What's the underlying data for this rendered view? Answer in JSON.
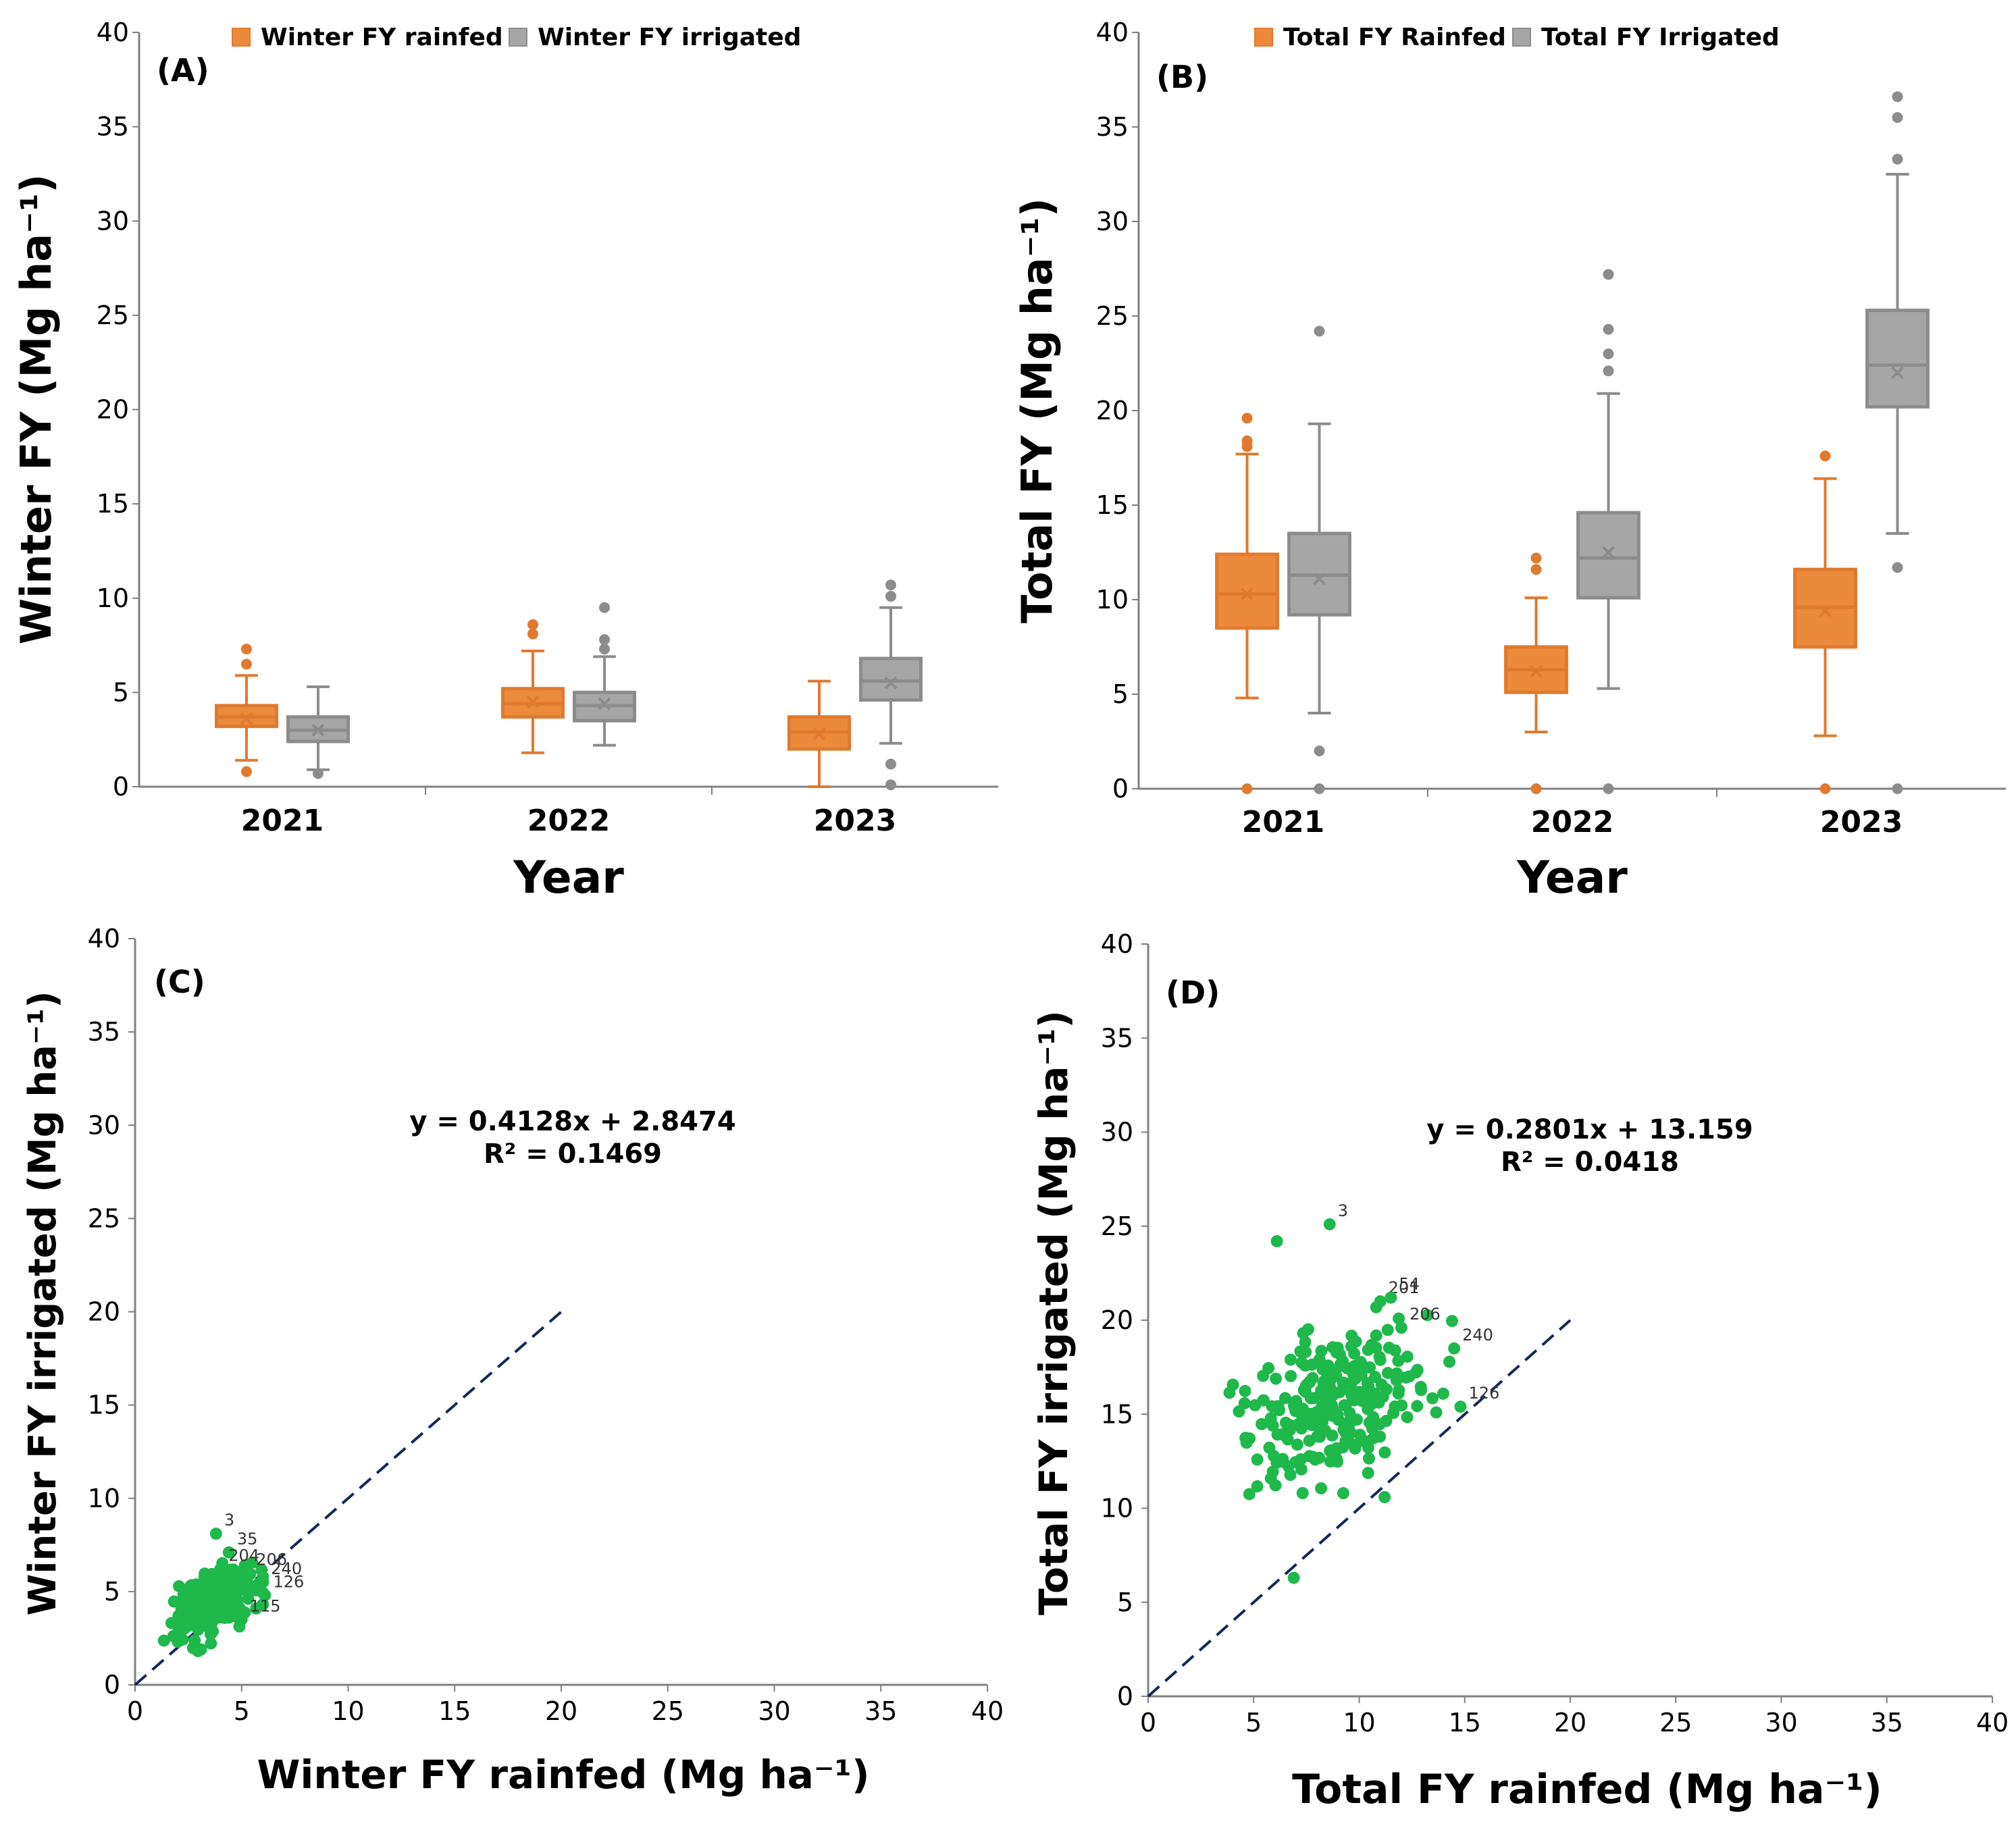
{
  "colors": {
    "rainfed": "#e07a2e",
    "irrigated": "#8c8c8c",
    "rainfed_fill": "#ec8a3c",
    "irrigated_fill": "#a6a6a6",
    "scatter": "#1fb84b",
    "line": "#14285a"
  },
  "chart_data": [
    {
      "type": "box",
      "panel": "(A)",
      "ylabel": "Winter FY (Mg ha⁻¹)",
      "xlabel": "Year",
      "ylim": [
        0,
        40
      ],
      "yticks": [
        0,
        5,
        10,
        15,
        20,
        25,
        30,
        35,
        40
      ],
      "categories": [
        "2021",
        "2022",
        "2023"
      ],
      "series": [
        {
          "name": "Winter FY rainfed",
          "color_key": "rainfed",
          "boxes": [
            {
              "min": 1.4,
              "q1": 3.2,
              "median": 3.7,
              "q3": 4.3,
              "max": 5.9,
              "mean": 3.6,
              "outliers": [
                0.8,
                6.5,
                7.3
              ]
            },
            {
              "min": 1.8,
              "q1": 3.7,
              "median": 4.4,
              "q3": 5.2,
              "max": 7.2,
              "mean": 4.5,
              "outliers": [
                8.1,
                8.6
              ]
            },
            {
              "min": 0.0,
              "q1": 2.0,
              "median": 2.9,
              "q3": 3.7,
              "max": 5.6,
              "mean": 2.8,
              "outliers": []
            }
          ]
        },
        {
          "name": "Winter FY irrigated",
          "color_key": "irrigated",
          "boxes": [
            {
              "min": 0.9,
              "q1": 2.4,
              "median": 3.0,
              "q3": 3.7,
              "max": 5.3,
              "mean": 3.0,
              "outliers": [
                0.7
              ]
            },
            {
              "min": 2.2,
              "q1": 3.5,
              "median": 4.3,
              "q3": 5.0,
              "max": 6.9,
              "mean": 4.4,
              "outliers": [
                7.3,
                7.8,
                9.5
              ]
            },
            {
              "min": 2.3,
              "q1": 4.6,
              "median": 5.6,
              "q3": 6.8,
              "max": 9.5,
              "mean": 5.5,
              "outliers": [
                0.1,
                1.2,
                10.1,
                10.7
              ]
            }
          ]
        }
      ]
    },
    {
      "type": "box",
      "panel": "(B)",
      "ylabel": "Total FY (Mg ha⁻¹)",
      "xlabel": "Year",
      "ylim": [
        0,
        40
      ],
      "yticks": [
        0,
        5,
        10,
        15,
        20,
        25,
        30,
        35,
        40
      ],
      "categories": [
        "2021",
        "2022",
        "2023"
      ],
      "series": [
        {
          "name": "Total FY Rainfed",
          "color_key": "rainfed",
          "boxes": [
            {
              "min": 4.8,
              "q1": 8.5,
              "median": 10.3,
              "q3": 12.4,
              "max": 17.7,
              "mean": 10.3,
              "outliers": [
                0.0,
                18.1,
                18.4,
                19.6
              ]
            },
            {
              "min": 3.0,
              "q1": 5.1,
              "median": 6.3,
              "q3": 7.5,
              "max": 10.1,
              "mean": 6.2,
              "outliers": [
                0.0,
                11.6,
                12.2
              ]
            },
            {
              "min": 2.8,
              "q1": 7.5,
              "median": 9.6,
              "q3": 11.6,
              "max": 16.4,
              "mean": 9.4,
              "outliers": [
                0.0,
                17.6
              ]
            }
          ]
        },
        {
          "name": "Total FY Irrigated",
          "color_key": "irrigated",
          "boxes": [
            {
              "min": 4.0,
              "q1": 9.2,
              "median": 11.3,
              "q3": 13.5,
              "max": 19.3,
              "mean": 11.1,
              "outliers": [
                0.0,
                2.0,
                24.2
              ]
            },
            {
              "min": 5.3,
              "q1": 10.1,
              "median": 12.2,
              "q3": 14.6,
              "max": 20.9,
              "mean": 12.5,
              "outliers": [
                0.0,
                22.1,
                23.0,
                24.3,
                27.2
              ]
            },
            {
              "min": 13.5,
              "q1": 20.2,
              "median": 22.4,
              "q3": 25.3,
              "max": 32.5,
              "mean": 22.0,
              "outliers": [
                0.0,
                11.7,
                33.3,
                35.5,
                36.6
              ]
            }
          ]
        }
      ]
    },
    {
      "type": "scatter",
      "panel": "(C)",
      "xlabel": "Winter FY rainfed (Mg ha⁻¹)",
      "ylabel": "Winter FY irrigated (Mg ha⁻¹)",
      "xlim": [
        0,
        40
      ],
      "ylim": [
        0,
        40
      ],
      "xticks": [
        0,
        5,
        10,
        15,
        20,
        25,
        30,
        35,
        40
      ],
      "yticks": [
        0,
        5,
        10,
        15,
        20,
        25,
        30,
        35,
        40
      ],
      "equation": "y = 0.4128x + 2.8474",
      "r2": "R² = 0.1469",
      "one_to_one": [
        [
          0,
          0
        ],
        [
          20,
          20
        ]
      ],
      "cloud": {
        "n": 240,
        "x_mean": 3.6,
        "x_sd": 0.9,
        "x_min": 1.3,
        "x_max": 6.0,
        "y_mean": 4.4,
        "y_sd": 0.9,
        "y_min": 1.4,
        "y_max": 6.6,
        "slope": 0.4128,
        "intercept": 2.8474
      },
      "labeled_points": [
        {
          "label": "3",
          "x": 3.8,
          "y": 8.1
        },
        {
          "label": "35",
          "x": 4.4,
          "y": 7.1
        },
        {
          "label": "204",
          "x": 4.0,
          "y": 6.2
        },
        {
          "label": "206",
          "x": 5.3,
          "y": 6.0
        },
        {
          "label": "240",
          "x": 6.0,
          "y": 5.5
        },
        {
          "label": "126",
          "x": 6.1,
          "y": 4.8
        },
        {
          "label": "115",
          "x": 5.0,
          "y": 3.5
        }
      ]
    },
    {
      "type": "scatter",
      "panel": "(D)",
      "xlabel": "Total FY rainfed (Mg ha⁻¹)",
      "ylabel": "Total FY irrigated (Mg ha⁻¹)",
      "xlim": [
        0,
        40
      ],
      "ylim": [
        0,
        40
      ],
      "xticks": [
        0,
        5,
        10,
        15,
        20,
        25,
        30,
        35,
        40
      ],
      "yticks": [
        0,
        5,
        10,
        15,
        20,
        25,
        30,
        35,
        40
      ],
      "equation": "y = 0.2801x + 13.159",
      "r2": "R² = 0.0418",
      "one_to_one": [
        [
          0,
          0
        ],
        [
          20,
          20
        ]
      ],
      "cloud": {
        "n": 240,
        "x_mean": 8.8,
        "x_sd": 2.1,
        "x_min": 3.8,
        "x_max": 14.4,
        "y_mean": 15.6,
        "y_sd": 2.2,
        "y_min": 9.6,
        "y_max": 21.5,
        "slope": 0.2801,
        "intercept": 13.159
      },
      "labeled_points": [
        {
          "label": "3",
          "x": 8.6,
          "y": 25.1
        },
        {
          "label": "201",
          "x": 11.0,
          "y": 21.0
        },
        {
          "label": "54",
          "x": 11.5,
          "y": 21.2
        },
        {
          "label": "206",
          "x": 12.0,
          "y": 19.6
        },
        {
          "label": "240",
          "x": 14.5,
          "y": 18.5
        },
        {
          "label": "126",
          "x": 14.8,
          "y": 15.4
        },
        {
          "label": "",
          "x": 6.1,
          "y": 24.2
        },
        {
          "label": "",
          "x": 6.9,
          "y": 6.3
        }
      ]
    }
  ]
}
